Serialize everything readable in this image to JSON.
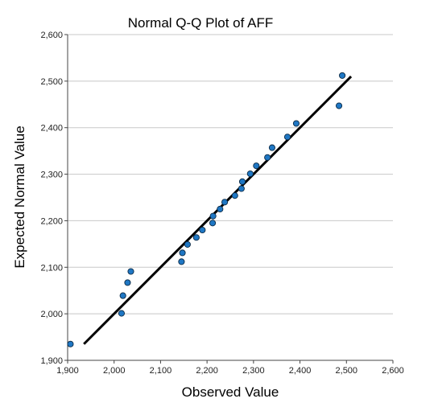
{
  "chart_data": {
    "type": "scatter",
    "title": "Normal Q-Q Plot of AFF",
    "xlabel": "Observed Value",
    "ylabel": "Expected Normal Value",
    "xlim": [
      1900,
      2600
    ],
    "ylim": [
      1900,
      2600
    ],
    "x_ticks": [
      "1,900",
      "2,000",
      "2,100",
      "2,200",
      "2,300",
      "2,400",
      "2,500",
      "2,600"
    ],
    "y_ticks": [
      "1,900",
      "2,000",
      "2,100",
      "2,200",
      "2,300",
      "2,400",
      "2,500",
      "2,600"
    ],
    "grid": "horizontal",
    "point_color": "#1f77c4",
    "line_color": "#000000",
    "reference_line": {
      "x": [
        1935,
        2510
      ],
      "y": [
        1935,
        2510
      ]
    },
    "points": [
      {
        "x": 1906,
        "y": 1935
      },
      {
        "x": 2016,
        "y": 2001
      },
      {
        "x": 2019,
        "y": 2039
      },
      {
        "x": 2029,
        "y": 2067
      },
      {
        "x": 2036,
        "y": 2091
      },
      {
        "x": 2145,
        "y": 2112
      },
      {
        "x": 2147,
        "y": 2131
      },
      {
        "x": 2158,
        "y": 2149
      },
      {
        "x": 2177,
        "y": 2164
      },
      {
        "x": 2190,
        "y": 2180
      },
      {
        "x": 2212,
        "y": 2195
      },
      {
        "x": 2213,
        "y": 2210
      },
      {
        "x": 2228,
        "y": 2225
      },
      {
        "x": 2238,
        "y": 2240
      },
      {
        "x": 2260,
        "y": 2254
      },
      {
        "x": 2274,
        "y": 2269
      },
      {
        "x": 2276,
        "y": 2284
      },
      {
        "x": 2293,
        "y": 2301
      },
      {
        "x": 2306,
        "y": 2318
      },
      {
        "x": 2330,
        "y": 2336
      },
      {
        "x": 2340,
        "y": 2357
      },
      {
        "x": 2373,
        "y": 2380
      },
      {
        "x": 2392,
        "y": 2409
      },
      {
        "x": 2484,
        "y": 2447
      },
      {
        "x": 2491,
        "y": 2512
      }
    ]
  }
}
